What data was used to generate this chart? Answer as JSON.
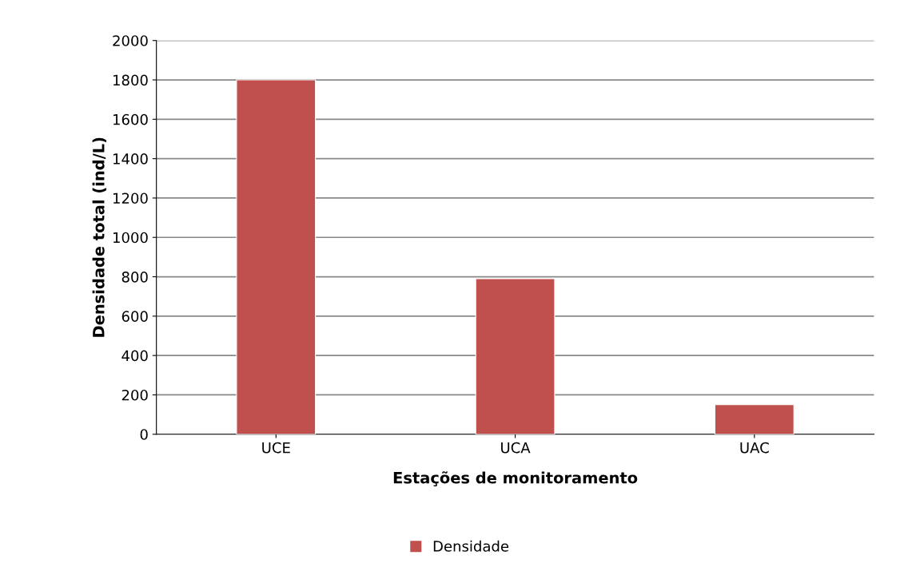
{
  "chart_data": {
    "type": "bar",
    "xlabel": "Estações de monitoramento",
    "ylabel": "Densidade total (ind/L)",
    "categories": [
      "UCE",
      "UCA",
      "UAC"
    ],
    "series": [
      {
        "name": "Densidade",
        "color": "#c0504d",
        "values": [
          1800,
          790,
          150
        ]
      }
    ],
    "ylim": [
      0,
      2000
    ],
    "yticks": [
      0,
      200,
      400,
      600,
      800,
      1000,
      1200,
      1400,
      1600,
      1800,
      2000
    ],
    "grid": "y",
    "legend": "bottom"
  }
}
